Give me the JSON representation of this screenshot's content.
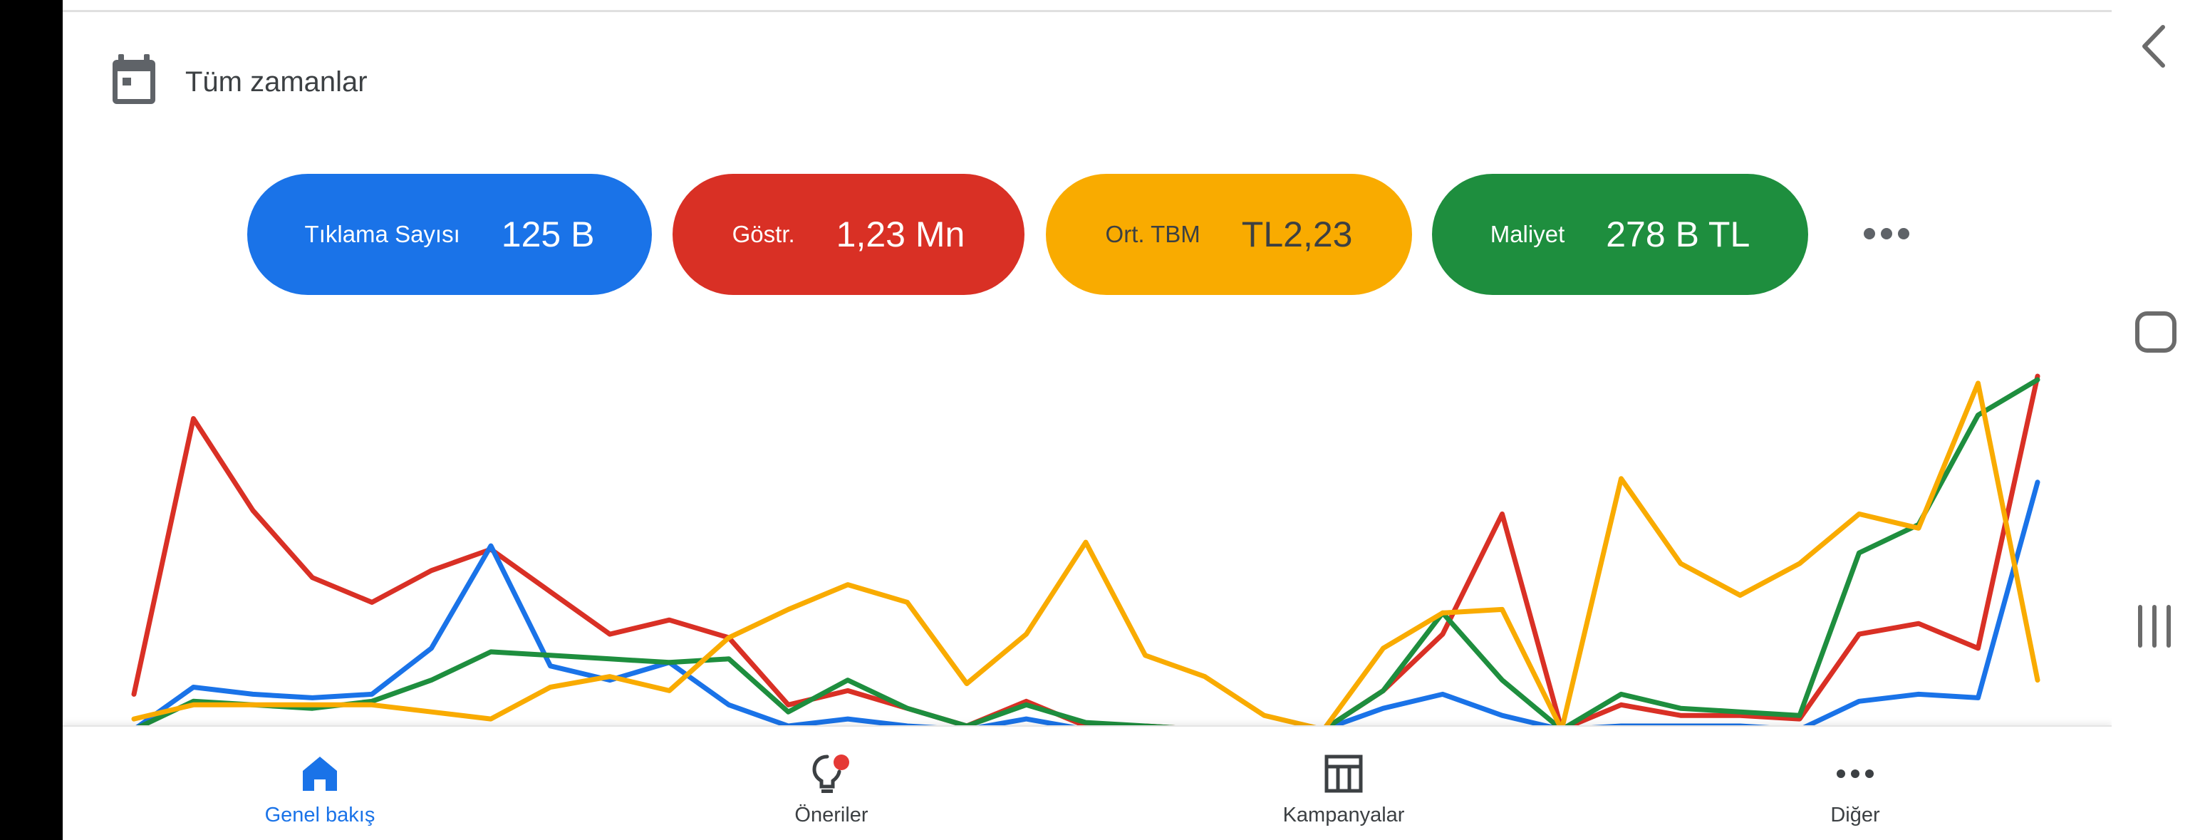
{
  "date_filter": {
    "label": "Tüm zamanlar",
    "icon": "calendar-icon"
  },
  "metrics": [
    {
      "label": "Tıklama Sayısı",
      "value": "125 B",
      "color": "#1a73e8"
    },
    {
      "label": "Göstr.",
      "value": "1,23 Mn",
      "color": "#d93025"
    },
    {
      "label": "Ort. TBM",
      "value": "TL2,23",
      "color": "#f9ab00"
    },
    {
      "label": "Maliyet",
      "value": "278 B TL",
      "color": "#1e8e3e"
    }
  ],
  "more_metrics_icon": "more-horizontal-icon",
  "chart_data": {
    "type": "line",
    "title": "",
    "xlabel": "",
    "ylabel": "",
    "ylim": [
      0,
      100
    ],
    "grid": false,
    "legend": "none",
    "x": [
      1,
      2,
      3,
      4,
      5,
      6,
      7,
      8,
      9,
      10,
      11,
      12,
      13,
      14,
      15,
      16,
      17,
      18,
      19,
      20,
      21,
      22,
      23,
      24,
      25,
      26,
      27,
      28,
      29,
      30,
      31,
      32,
      33
    ],
    "series": [
      {
        "color": "#d93025",
        "values": [
          10,
          88,
          62,
          43,
          36,
          45,
          51,
          39,
          27,
          31,
          26,
          7,
          11,
          6,
          1,
          8,
          1,
          1,
          0,
          0,
          0,
          11,
          27,
          61,
          0,
          7,
          4,
          4,
          3,
          27,
          30,
          23,
          100
        ]
      },
      {
        "color": "#1a73e8",
        "values": [
          0,
          12,
          10,
          9,
          10,
          23,
          52,
          18,
          14,
          19,
          7,
          1,
          3,
          1,
          0,
          3,
          0,
          0,
          0,
          0,
          0,
          6,
          10,
          4,
          0,
          1,
          1,
          1,
          0,
          8,
          10,
          9,
          70
        ]
      },
      {
        "color": "#1e8e3e",
        "values": [
          0,
          8,
          7,
          6,
          8,
          14,
          22,
          21,
          20,
          19,
          20,
          5,
          14,
          6,
          1,
          7,
          2,
          1,
          0,
          0,
          0,
          11,
          33,
          14,
          0,
          10,
          6,
          5,
          4,
          50,
          58,
          89,
          99
        ]
      },
      {
        "color": "#f9ab00",
        "values": [
          3,
          7,
          7,
          7,
          7,
          5,
          3,
          12,
          15,
          11,
          26,
          34,
          41,
          36,
          13,
          27,
          53,
          21,
          15,
          4,
          0,
          23,
          33,
          34,
          0,
          71,
          47,
          38,
          47,
          61,
          57,
          98,
          14
        ]
      }
    ]
  },
  "bottom_nav": [
    {
      "label": "Genel bakış",
      "icon": "home-icon",
      "active": true
    },
    {
      "label": "Öneriler",
      "icon": "lightbulb-icon",
      "active": false
    },
    {
      "label": "Kampanyalar",
      "icon": "campaigns-icon",
      "active": false
    },
    {
      "label": "Diğer",
      "icon": "more-horizontal-icon",
      "active": false
    }
  ],
  "system_nav": {
    "back_icon": "back-chevron-icon",
    "home_icon": "home-square-icon",
    "recents_icon": "recents-icon"
  }
}
